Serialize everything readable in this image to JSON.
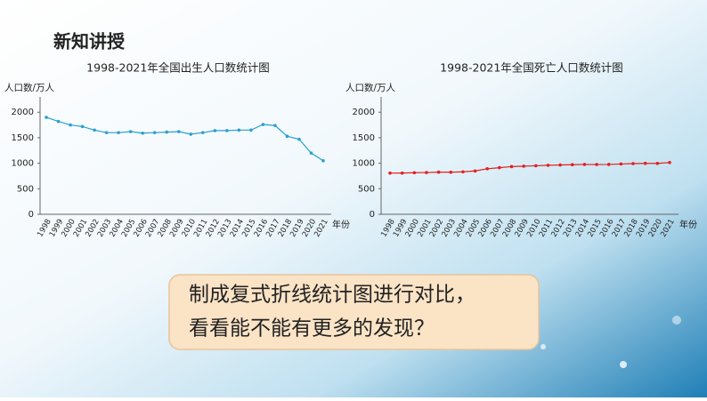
{
  "heading": "新知讲授",
  "callout": [
    "制成复式折线统计图进行对比，",
    "看看能不能有更多的发现？"
  ],
  "chart_data": [
    {
      "type": "line",
      "title": "1998-2021年全国出生人口数统计图",
      "y_label": "人口数/万人",
      "x_label": "年份",
      "categories": [
        "1998",
        "1999",
        "2000",
        "2001",
        "2002",
        "2003",
        "2004",
        "2005",
        "2006",
        "2007",
        "2008",
        "2009",
        "2010",
        "2011",
        "2012",
        "2013",
        "2014",
        "2015",
        "2016",
        "2017",
        "2018",
        "2019",
        "2020",
        "2021"
      ],
      "series": [
        {
          "name": "出生人口数",
          "color": "#2a9fd0",
          "values": [
            1900,
            1820,
            1750,
            1720,
            1650,
            1600,
            1600,
            1620,
            1590,
            1600,
            1610,
            1620,
            1570,
            1600,
            1640,
            1640,
            1650,
            1650,
            1760,
            1740,
            1530,
            1470,
            1200,
            1050
          ]
        }
      ],
      "ylim": [
        0,
        2300
      ],
      "yticks": [
        0,
        500,
        1000,
        1500,
        2000
      ],
      "grid": false
    },
    {
      "type": "line",
      "title": "1998-2021年全国死亡人口数统计图",
      "y_label": "人口数/万人",
      "x_label": "年份",
      "categories": [
        "1998",
        "1999",
        "2000",
        "2001",
        "2002",
        "2003",
        "2004",
        "2005",
        "2006",
        "2007",
        "2008",
        "2009",
        "2010",
        "2011",
        "2012",
        "2013",
        "2014",
        "2015",
        "2016",
        "2017",
        "2018",
        "2019",
        "2020",
        "2021"
      ],
      "series": [
        {
          "name": "死亡人口数",
          "color": "#e02020",
          "values": [
            807,
            808,
            814,
            818,
            826,
            825,
            832,
            849,
            892,
            913,
            935,
            943,
            951,
            960,
            966,
            972,
            977,
            975,
            977,
            986,
            993,
            998,
            997,
            1014
          ]
        }
      ],
      "ylim": [
        0,
        2300
      ],
      "yticks": [
        0,
        500,
        1000,
        1500,
        2000
      ],
      "grid": false
    }
  ]
}
